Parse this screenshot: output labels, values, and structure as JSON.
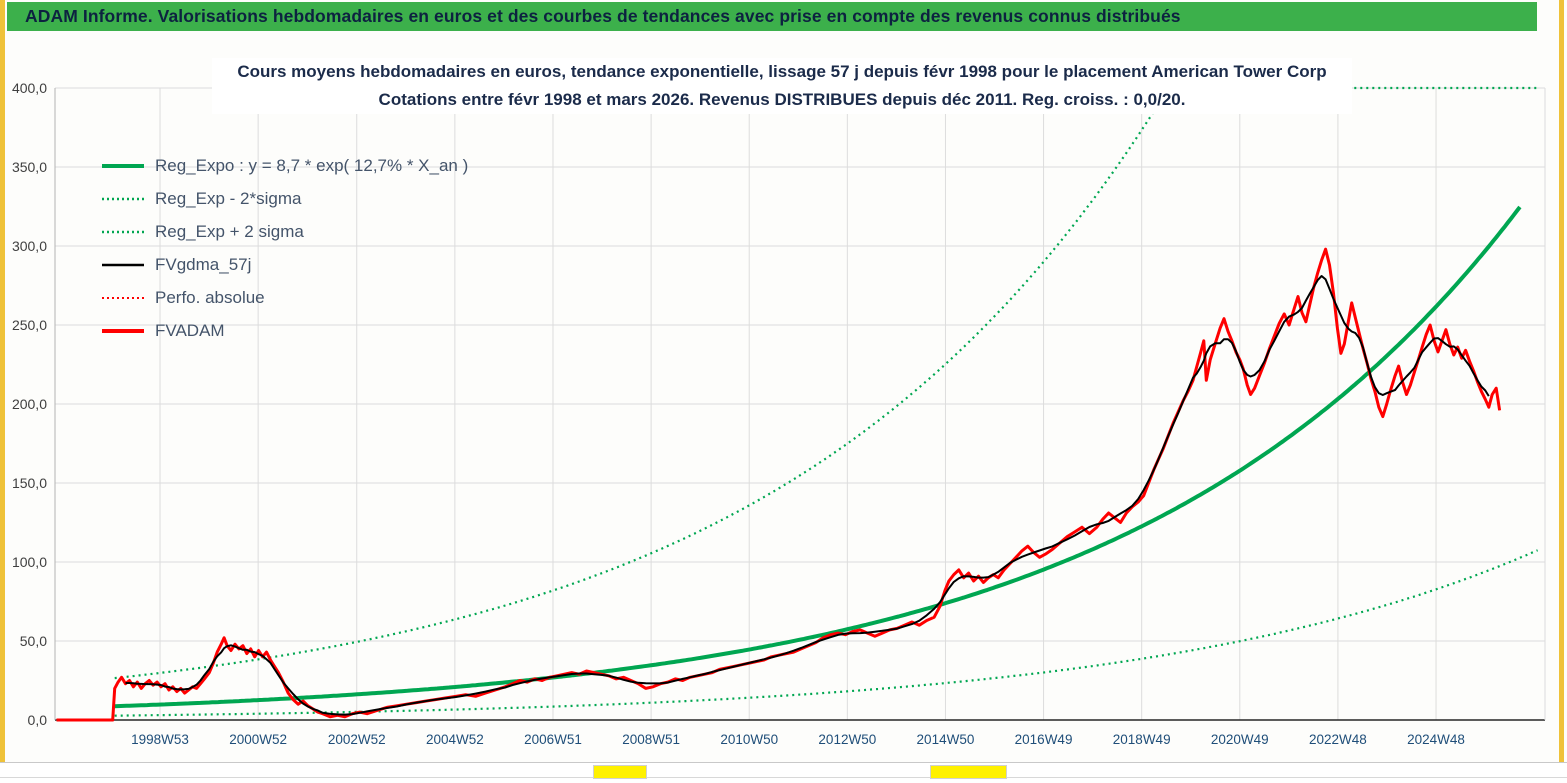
{
  "banner": {
    "title": "ADAM Informe. Valorisations hebdomadaires en euros et des courbes de tendances avec prise en compte des revenus connus distribués"
  },
  "chart_data": {
    "type": "line",
    "title_line1": "Cours moyens hebdomadaires en euros, tendance exponentielle, lissage 57 j depuis févr 1998 pour le placement American Tower Corp",
    "title_line2": "Cotations entre févr 1998 et mars 2026. Revenus DISTRIBUES depuis déc 2011. Reg. croiss. : 0,0/20.",
    "xlabel": "",
    "ylabel": "",
    "grid": true,
    "legend_position": "upper-left-inside",
    "xlim": [
      1996.87,
      2027.09
    ],
    "ylim": [
      0,
      400
    ],
    "y_ticks": [
      {
        "v": 0,
        "label": "0,0"
      },
      {
        "v": 50,
        "label": "50,0"
      },
      {
        "v": 100,
        "label": "100,0"
      },
      {
        "v": 150,
        "label": "150,0"
      },
      {
        "v": 200,
        "label": "200,0"
      },
      {
        "v": 250,
        "label": "250,0"
      },
      {
        "v": 300,
        "label": "300,0"
      },
      {
        "v": 350,
        "label": "350,0"
      },
      {
        "v": 400,
        "label": "400,0"
      }
    ],
    "x_ticks": [
      {
        "t": 1999.0,
        "label": "1998W53"
      },
      {
        "t": 2000.99,
        "label": "2000W52"
      },
      {
        "t": 2002.99,
        "label": "2002W52"
      },
      {
        "t": 2004.98,
        "label": "2004W52"
      },
      {
        "t": 2006.97,
        "label": "2006W51"
      },
      {
        "t": 2008.96,
        "label": "2008W51"
      },
      {
        "t": 2010.95,
        "label": "2010W50"
      },
      {
        "t": 2012.94,
        "label": "2012W50"
      },
      {
        "t": 2014.93,
        "label": "2014W50"
      },
      {
        "t": 2016.92,
        "label": "2016W49"
      },
      {
        "t": 2018.91,
        "label": "2018W49"
      },
      {
        "t": 2020.9,
        "label": "2020W49"
      },
      {
        "t": 2022.89,
        "label": "2022W48"
      },
      {
        "t": 2024.88,
        "label": "2024W48"
      }
    ],
    "colors": {
      "banner_bg": "#3CB04B",
      "banner_text": "#0D2240",
      "edge_yellow": "#EFC239",
      "cell_yellow": "#FFF100",
      "grid": "#DCDCDC",
      "axis_line": "#262626",
      "x_tick_text": "#1F4E79",
      "y_tick_text": "#3F3F3F",
      "title_text": "#1B2B4A",
      "legend_text": "#44546A",
      "green": "#00A651",
      "red": "#FF0000",
      "black": "#000000"
    },
    "series": [
      {
        "slug": "reg-expo",
        "name": "Reg_Expo : y = 8,7 * exp( 12,7% *  X_an )",
        "kind": "exp",
        "base": 8.7,
        "rate": 0.127,
        "t0": 1998.08,
        "t_start": 1998.08,
        "t_end": 2026.6,
        "color": "#00A651",
        "width": 4,
        "dash": ""
      },
      {
        "slug": "reg-exp-minus-2sigma",
        "name": "Reg_Exp - 2*sigma",
        "kind": "exp",
        "base": 2.75,
        "rate": 0.127,
        "t0": 1998.08,
        "t_start": 1998.08,
        "t_end": 2026.95,
        "color": "#00A651",
        "width": 2.2,
        "dash": "2 4"
      },
      {
        "slug": "reg-exp-plus-2sigma",
        "name": "Reg_Exp + 2 sigma",
        "kind": "exp",
        "base": 26.5,
        "rate": 0.127,
        "t0": 1998.08,
        "t_start": 1998.08,
        "t_end": 2026.95,
        "clip": 400,
        "color": "#00A651",
        "width": 2.2,
        "dash": "2 4"
      },
      {
        "slug": "fvgdma-57j",
        "name": "FVgdma_57j",
        "kind": "ma",
        "ref": "FVADAM",
        "window": 7,
        "color": "#000000",
        "width": 2,
        "dash": ""
      },
      {
        "slug": "perfo-absolue",
        "name": "Perfo. absolue",
        "kind": "points",
        "ref": "FVADAM",
        "color": "#FF0000",
        "width": 1.5,
        "dash": "2 3"
      },
      {
        "slug": "fvadam",
        "name": "FVADAM",
        "kind": "points",
        "ref": "FVADAM",
        "color": "#FF0000",
        "width": 3,
        "dash": ""
      }
    ],
    "points": {
      "FVADAM": [
        [
          1996.9,
          0
        ],
        [
          1998.04,
          0
        ],
        [
          1998.08,
          20
        ],
        [
          1998.15,
          24
        ],
        [
          1998.22,
          27
        ],
        [
          1998.3,
          23
        ],
        [
          1998.38,
          25
        ],
        [
          1998.46,
          21
        ],
        [
          1998.54,
          24
        ],
        [
          1998.62,
          20
        ],
        [
          1998.7,
          23
        ],
        [
          1998.78,
          25
        ],
        [
          1998.86,
          22
        ],
        [
          1998.94,
          24
        ],
        [
          1999.02,
          21
        ],
        [
          1999.1,
          23
        ],
        [
          1999.18,
          19
        ],
        [
          1999.26,
          21
        ],
        [
          1999.34,
          18
        ],
        [
          1999.42,
          20
        ],
        [
          1999.5,
          17
        ],
        [
          1999.58,
          19
        ],
        [
          1999.66,
          21
        ],
        [
          1999.74,
          20
        ],
        [
          1999.82,
          23
        ],
        [
          1999.9,
          26
        ],
        [
          2000.0,
          30
        ],
        [
          2000.08,
          36
        ],
        [
          2000.16,
          43
        ],
        [
          2000.24,
          48
        ],
        [
          2000.3,
          52
        ],
        [
          2000.36,
          47
        ],
        [
          2000.44,
          44
        ],
        [
          2000.52,
          48
        ],
        [
          2000.6,
          45
        ],
        [
          2000.68,
          47
        ],
        [
          2000.76,
          42
        ],
        [
          2000.84,
          45
        ],
        [
          2000.92,
          40
        ],
        [
          2001.0,
          44
        ],
        [
          2001.08,
          40
        ],
        [
          2001.16,
          43
        ],
        [
          2001.24,
          38
        ],
        [
          2001.32,
          34
        ],
        [
          2001.4,
          30
        ],
        [
          2001.5,
          24
        ],
        [
          2001.6,
          17
        ],
        [
          2001.7,
          13
        ],
        [
          2001.8,
          10
        ],
        [
          2001.9,
          12
        ],
        [
          2002.0,
          9
        ],
        [
          2002.1,
          7
        ],
        [
          2002.2,
          5
        ],
        [
          2002.3,
          4
        ],
        [
          2002.45,
          2
        ],
        [
          2002.6,
          3
        ],
        [
          2002.75,
          2
        ],
        [
          2002.9,
          4
        ],
        [
          2003.05,
          5
        ],
        [
          2003.2,
          4
        ],
        [
          2003.4,
          6
        ],
        [
          2003.6,
          8
        ],
        [
          2003.8,
          9
        ],
        [
          2004.0,
          10
        ],
        [
          2004.2,
          11
        ],
        [
          2004.4,
          12
        ],
        [
          2004.6,
          13
        ],
        [
          2004.8,
          14
        ],
        [
          2005.0,
          15
        ],
        [
          2005.2,
          16
        ],
        [
          2005.4,
          15
        ],
        [
          2005.6,
          17
        ],
        [
          2005.8,
          19
        ],
        [
          2006.0,
          21
        ],
        [
          2006.15,
          23
        ],
        [
          2006.3,
          25
        ],
        [
          2006.45,
          24
        ],
        [
          2006.6,
          26
        ],
        [
          2006.75,
          25
        ],
        [
          2006.9,
          27
        ],
        [
          2007.05,
          28
        ],
        [
          2007.2,
          29
        ],
        [
          2007.35,
          30
        ],
        [
          2007.5,
          29
        ],
        [
          2007.65,
          31
        ],
        [
          2007.8,
          30
        ],
        [
          2007.95,
          29
        ],
        [
          2008.1,
          28
        ],
        [
          2008.25,
          26
        ],
        [
          2008.4,
          27
        ],
        [
          2008.55,
          25
        ],
        [
          2008.7,
          23
        ],
        [
          2008.85,
          20
        ],
        [
          2009.0,
          21
        ],
        [
          2009.15,
          23
        ],
        [
          2009.3,
          24
        ],
        [
          2009.45,
          26
        ],
        [
          2009.6,
          25
        ],
        [
          2009.75,
          27
        ],
        [
          2009.9,
          28
        ],
        [
          2010.05,
          29
        ],
        [
          2010.2,
          30
        ],
        [
          2010.35,
          32
        ],
        [
          2010.5,
          33
        ],
        [
          2010.65,
          34
        ],
        [
          2010.8,
          35
        ],
        [
          2010.95,
          36
        ],
        [
          2011.1,
          37
        ],
        [
          2011.25,
          38
        ],
        [
          2011.4,
          40
        ],
        [
          2011.55,
          41
        ],
        [
          2011.7,
          42
        ],
        [
          2011.85,
          43
        ],
        [
          2012.0,
          45
        ],
        [
          2012.15,
          47
        ],
        [
          2012.3,
          49
        ],
        [
          2012.45,
          52
        ],
        [
          2012.6,
          54
        ],
        [
          2012.75,
          55
        ],
        [
          2012.9,
          54
        ],
        [
          2013.05,
          56
        ],
        [
          2013.2,
          57
        ],
        [
          2013.35,
          55
        ],
        [
          2013.5,
          53
        ],
        [
          2013.65,
          55
        ],
        [
          2013.8,
          57
        ],
        [
          2013.95,
          58
        ],
        [
          2014.1,
          60
        ],
        [
          2014.25,
          62
        ],
        [
          2014.4,
          60
        ],
        [
          2014.55,
          63
        ],
        [
          2014.7,
          65
        ],
        [
          2014.82,
          72
        ],
        [
          2014.92,
          82
        ],
        [
          2015.0,
          88
        ],
        [
          2015.1,
          92
        ],
        [
          2015.2,
          95
        ],
        [
          2015.3,
          90
        ],
        [
          2015.4,
          93
        ],
        [
          2015.5,
          88
        ],
        [
          2015.6,
          91
        ],
        [
          2015.7,
          87
        ],
        [
          2015.8,
          90
        ],
        [
          2015.9,
          92
        ],
        [
          2016.0,
          90
        ],
        [
          2016.12,
          95
        ],
        [
          2016.24,
          99
        ],
        [
          2016.36,
          103
        ],
        [
          2016.48,
          107
        ],
        [
          2016.6,
          110
        ],
        [
          2016.72,
          106
        ],
        [
          2016.84,
          103
        ],
        [
          2016.96,
          105
        ],
        [
          2017.1,
          108
        ],
        [
          2017.25,
          112
        ],
        [
          2017.4,
          116
        ],
        [
          2017.55,
          119
        ],
        [
          2017.7,
          122
        ],
        [
          2017.85,
          118
        ],
        [
          2018.0,
          122
        ],
        [
          2018.12,
          127
        ],
        [
          2018.24,
          131
        ],
        [
          2018.36,
          128
        ],
        [
          2018.48,
          125
        ],
        [
          2018.6,
          131
        ],
        [
          2018.72,
          135
        ],
        [
          2018.84,
          138
        ],
        [
          2018.95,
          142
        ],
        [
          2019.05,
          150
        ],
        [
          2019.15,
          158
        ],
        [
          2019.25,
          165
        ],
        [
          2019.35,
          172
        ],
        [
          2019.45,
          180
        ],
        [
          2019.55,
          188
        ],
        [
          2019.65,
          195
        ],
        [
          2019.75,
          202
        ],
        [
          2019.85,
          208
        ],
        [
          2019.95,
          215
        ],
        [
          2020.03,
          224
        ],
        [
          2020.1,
          232
        ],
        [
          2020.17,
          240
        ],
        [
          2020.22,
          215
        ],
        [
          2020.3,
          228
        ],
        [
          2020.4,
          238
        ],
        [
          2020.5,
          248
        ],
        [
          2020.58,
          254
        ],
        [
          2020.66,
          246
        ],
        [
          2020.74,
          240
        ],
        [
          2020.82,
          233
        ],
        [
          2020.9,
          228
        ],
        [
          2020.97,
          222
        ],
        [
          2021.05,
          212
        ],
        [
          2021.12,
          206
        ],
        [
          2021.2,
          210
        ],
        [
          2021.3,
          218
        ],
        [
          2021.4,
          226
        ],
        [
          2021.5,
          235
        ],
        [
          2021.6,
          243
        ],
        [
          2021.7,
          251
        ],
        [
          2021.8,
          257
        ],
        [
          2021.9,
          250
        ],
        [
          2022.0,
          260
        ],
        [
          2022.08,
          268
        ],
        [
          2022.16,
          258
        ],
        [
          2022.24,
          252
        ],
        [
          2022.32,
          263
        ],
        [
          2022.4,
          274
        ],
        [
          2022.48,
          283
        ],
        [
          2022.56,
          291
        ],
        [
          2022.64,
          298
        ],
        [
          2022.72,
          288
        ],
        [
          2022.8,
          270
        ],
        [
          2022.88,
          248
        ],
        [
          2022.95,
          232
        ],
        [
          2023.02,
          238
        ],
        [
          2023.1,
          252
        ],
        [
          2023.17,
          264
        ],
        [
          2023.24,
          255
        ],
        [
          2023.32,
          245
        ],
        [
          2023.4,
          235
        ],
        [
          2023.48,
          226
        ],
        [
          2023.56,
          216
        ],
        [
          2023.64,
          208
        ],
        [
          2023.72,
          198
        ],
        [
          2023.8,
          192
        ],
        [
          2023.88,
          200
        ],
        [
          2023.95,
          208
        ],
        [
          2024.05,
          218
        ],
        [
          2024.12,
          224
        ],
        [
          2024.2,
          214
        ],
        [
          2024.28,
          206
        ],
        [
          2024.36,
          212
        ],
        [
          2024.44,
          220
        ],
        [
          2024.52,
          228
        ],
        [
          2024.6,
          236
        ],
        [
          2024.68,
          244
        ],
        [
          2024.76,
          250
        ],
        [
          2024.84,
          240
        ],
        [
          2024.92,
          233
        ],
        [
          2025.0,
          240
        ],
        [
          2025.08,
          247
        ],
        [
          2025.16,
          238
        ],
        [
          2025.24,
          231
        ],
        [
          2025.32,
          236
        ],
        [
          2025.4,
          229
        ],
        [
          2025.48,
          234
        ],
        [
          2025.56,
          227
        ],
        [
          2025.64,
          221
        ],
        [
          2025.72,
          214
        ],
        [
          2025.8,
          208
        ],
        [
          2025.88,
          203
        ],
        [
          2025.95,
          198
        ],
        [
          2026.02,
          206
        ],
        [
          2026.1,
          210
        ],
        [
          2026.17,
          196
        ]
      ]
    }
  }
}
